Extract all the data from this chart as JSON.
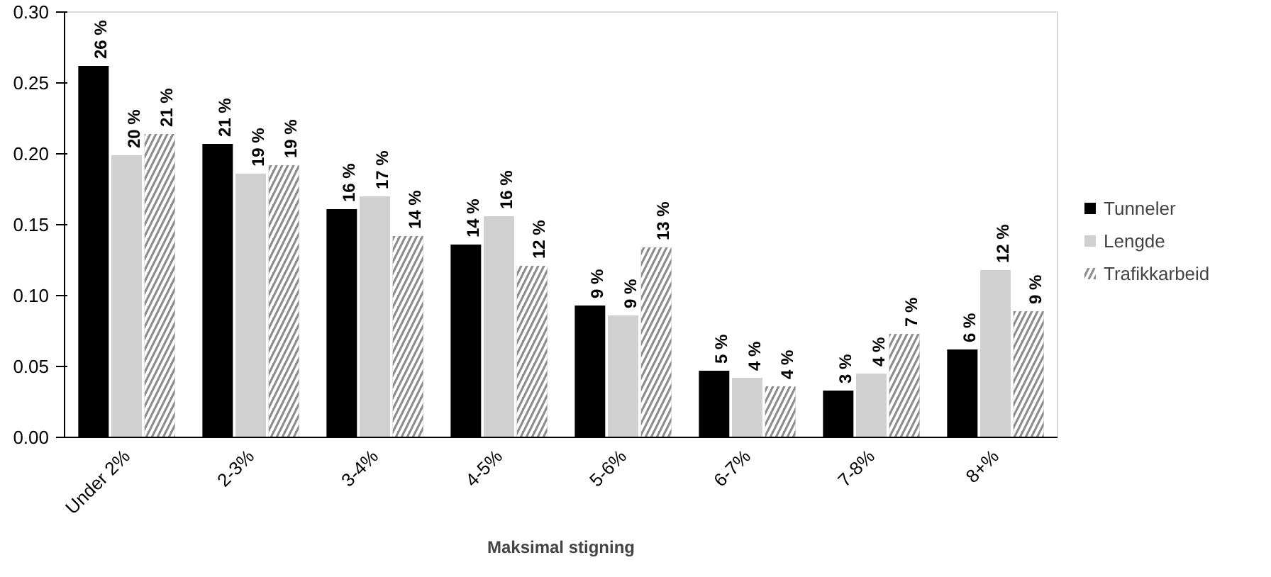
{
  "chart_data": {
    "type": "bar",
    "xlabel": "Maksimal stigning",
    "categories": [
      "Under 2%",
      "2-3%",
      "3-4%",
      "4-5%",
      "5-6%",
      "6-7%",
      "7-8%",
      "8+%"
    ],
    "series": [
      {
        "name": "Tunneler",
        "color": "#000000",
        "values": [
          0.262,
          0.207,
          0.161,
          0.136,
          0.093,
          0.047,
          0.033,
          0.062
        ],
        "value_labels": [
          "26 %",
          "21 %",
          "16 %",
          "14 %",
          "9 %",
          "5 %",
          "3 %",
          "6 %"
        ]
      },
      {
        "name": "Lengde",
        "color": "#d0d0d0",
        "values": [
          0.199,
          0.186,
          0.17,
          0.156,
          0.086,
          0.042,
          0.045,
          0.118
        ],
        "value_labels": [
          "20 %",
          "19 %",
          "17 %",
          "16 %",
          "9 %",
          "4 %",
          "4 %",
          "12 %"
        ]
      },
      {
        "name": "Trafikkarbeid",
        "color": "#8c8c8c",
        "values": [
          0.214,
          0.192,
          0.142,
          0.121,
          0.134,
          0.036,
          0.073,
          0.089
        ],
        "value_labels": [
          "21 %",
          "19 %",
          "14 %",
          "12 %",
          "13 %",
          "4 %",
          "7 %",
          "9 %"
        ]
      }
    ],
    "ylim": [
      0,
      0.3
    ],
    "yticks": [
      {
        "value": 0,
        "label": "0.00"
      },
      {
        "value": 0.05,
        "label": "0.05"
      },
      {
        "value": 0.1,
        "label": "0.10"
      },
      {
        "value": 0.15,
        "label": "0.15"
      },
      {
        "value": 0.2,
        "label": "0.20"
      },
      {
        "value": 0.25,
        "label": "0.25"
      },
      {
        "value": 0.3,
        "label": "0.30"
      }
    ],
    "grid": false,
    "legend": "right"
  }
}
